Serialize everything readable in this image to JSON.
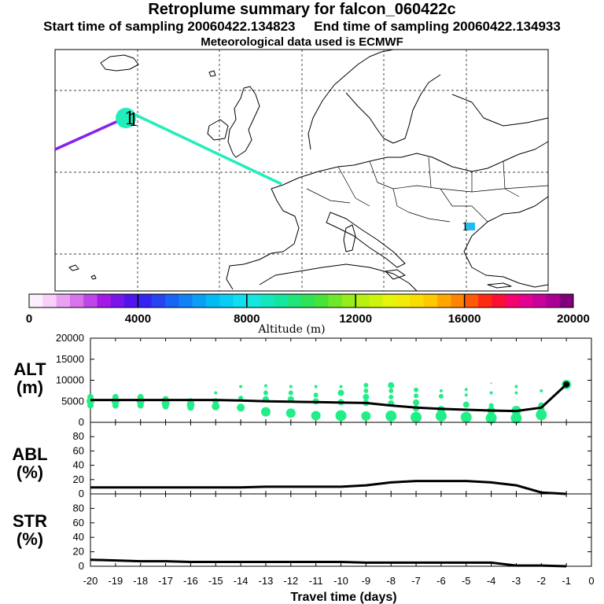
{
  "header": {
    "title": "Retroplume summary for falcon_060422c",
    "sampling_line": "Start time of sampling 20060422.134823     End time of sampling 20060422.134933",
    "met_line": "Meteorological data used is ECMWF"
  },
  "colors": {
    "plume_dot": "#22ee88",
    "line": "#000000",
    "track_west": "#8822ee",
    "track_mid": "#22eebb",
    "marker": "#22bbee"
  },
  "chart_data": [
    {
      "id": "map",
      "type": "map",
      "trajectory_labels": [
        "1",
        "1"
      ],
      "colorbar": {
        "label": "Altitude (m)",
        "ticks": [
          0,
          4000,
          8000,
          12000,
          16000,
          20000
        ],
        "range": [
          0,
          20000
        ]
      }
    },
    {
      "id": "alt",
      "type": "line+scatter",
      "ylabel_lines": [
        "ALT",
        "(m)"
      ],
      "ylim": [
        0,
        20000
      ],
      "yticks": [
        0,
        5000,
        10000,
        15000,
        20000
      ],
      "x": [
        -20,
        -19,
        -18,
        -17,
        -16,
        -15,
        -14,
        -13,
        -12,
        -11,
        -10,
        -9,
        -8,
        -7,
        -6,
        -5,
        -4,
        -3,
        -2,
        -1
      ],
      "mean_altitude": [
        5300,
        5300,
        5300,
        5300,
        5300,
        5300,
        5200,
        5000,
        4900,
        4800,
        4700,
        4600,
        4000,
        3500,
        3200,
        3000,
        2800,
        2700,
        3500,
        9000
      ],
      "plume_points": [
        [
          -20,
          6000,
          4
        ],
        [
          -20,
          5000,
          5
        ],
        [
          -20,
          4000,
          4
        ],
        [
          -19,
          6000,
          4
        ],
        [
          -19,
          5000,
          5
        ],
        [
          -19,
          4000,
          4
        ],
        [
          -18,
          6000,
          4
        ],
        [
          -18,
          5000,
          5
        ],
        [
          -18,
          4000,
          4
        ],
        [
          -17,
          5500,
          4
        ],
        [
          -17,
          4500,
          5
        ],
        [
          -17,
          3800,
          4
        ],
        [
          -16,
          5000,
          4
        ],
        [
          -16,
          4200,
          5
        ],
        [
          -16,
          3500,
          4
        ],
        [
          -15,
          7000,
          2
        ],
        [
          -15,
          5000,
          4
        ],
        [
          -15,
          3800,
          5
        ],
        [
          -14,
          8500,
          2
        ],
        [
          -14,
          5800,
          3
        ],
        [
          -14,
          3500,
          5
        ],
        [
          -13,
          8700,
          2
        ],
        [
          -13,
          7000,
          3
        ],
        [
          -13,
          5500,
          4
        ],
        [
          -13,
          2500,
          6
        ],
        [
          -12,
          8500,
          2
        ],
        [
          -12,
          7000,
          3
        ],
        [
          -12,
          5500,
          4
        ],
        [
          -12,
          2200,
          6
        ],
        [
          -11,
          8500,
          2
        ],
        [
          -11,
          6500,
          3
        ],
        [
          -11,
          5000,
          4
        ],
        [
          -11,
          1600,
          6
        ],
        [
          -10,
          8500,
          2
        ],
        [
          -10,
          7000,
          4
        ],
        [
          -10,
          4800,
          4
        ],
        [
          -10,
          1600,
          7
        ],
        [
          -9,
          8800,
          3
        ],
        [
          -9,
          7500,
          3
        ],
        [
          -9,
          6000,
          4
        ],
        [
          -9,
          4600,
          4
        ],
        [
          -9,
          1500,
          6
        ],
        [
          -8,
          8800,
          4
        ],
        [
          -8,
          7500,
          3
        ],
        [
          -8,
          6000,
          3
        ],
        [
          -8,
          4500,
          4
        ],
        [
          -8,
          1500,
          7
        ],
        [
          -7,
          7700,
          3
        ],
        [
          -7,
          6300,
          3
        ],
        [
          -7,
          4700,
          4
        ],
        [
          -7,
          3300,
          4
        ],
        [
          -7,
          1200,
          7
        ],
        [
          -6,
          7500,
          2
        ],
        [
          -6,
          6200,
          3
        ],
        [
          -6,
          3000,
          5
        ],
        [
          -6,
          1500,
          7
        ],
        [
          -5,
          7800,
          2
        ],
        [
          -5,
          6500,
          2
        ],
        [
          -5,
          4200,
          4
        ],
        [
          -5,
          1200,
          7
        ],
        [
          -4,
          9300,
          1
        ],
        [
          -4,
          7000,
          2
        ],
        [
          -4,
          4000,
          3
        ],
        [
          -4,
          2800,
          5
        ],
        [
          -4,
          1000,
          7
        ],
        [
          -3,
          8500,
          2
        ],
        [
          -3,
          7000,
          2
        ],
        [
          -3,
          2800,
          6
        ],
        [
          -3,
          1000,
          7
        ],
        [
          -2,
          7500,
          2
        ],
        [
          -2,
          4000,
          4
        ],
        [
          -2,
          3200,
          4
        ],
        [
          -2,
          1800,
          7
        ],
        [
          -1,
          9000,
          6
        ]
      ]
    },
    {
      "id": "abl",
      "type": "line",
      "ylabel_lines": [
        "ABL",
        "(%)"
      ],
      "ylim": [
        0,
        100
      ],
      "yticks": [
        0,
        20,
        40,
        60,
        80
      ],
      "x": [
        -20,
        -19,
        -18,
        -17,
        -16,
        -15,
        -14,
        -13,
        -12,
        -11,
        -10,
        -9,
        -8,
        -7,
        -6,
        -5,
        -4,
        -3,
        -2,
        -1
      ],
      "values": [
        9,
        9,
        9,
        9,
        9,
        9,
        9,
        10,
        10,
        10,
        10,
        12,
        16,
        18,
        18,
        18,
        16,
        12,
        2,
        0
      ]
    },
    {
      "id": "str",
      "type": "line",
      "ylabel_lines": [
        "STR",
        "(%)"
      ],
      "ylim": [
        0,
        100
      ],
      "yticks": [
        0,
        20,
        40,
        60,
        80
      ],
      "x": [
        -20,
        -19,
        -18,
        -17,
        -16,
        -15,
        -14,
        -13,
        -12,
        -11,
        -10,
        -9,
        -8,
        -7,
        -6,
        -5,
        -4,
        -3,
        -2,
        -1
      ],
      "values": [
        9,
        8,
        7,
        7,
        6,
        6,
        6,
        6,
        6,
        6,
        6,
        5,
        5,
        5,
        5,
        5,
        5,
        1,
        1,
        0
      ],
      "xlabel": "Travel time (days)",
      "xticks": [
        -20,
        -19,
        -18,
        -17,
        -16,
        -15,
        -14,
        -13,
        -12,
        -11,
        -10,
        -9,
        -8,
        -7,
        -6,
        -5,
        -4,
        -3,
        -2,
        -1,
        0
      ]
    }
  ]
}
